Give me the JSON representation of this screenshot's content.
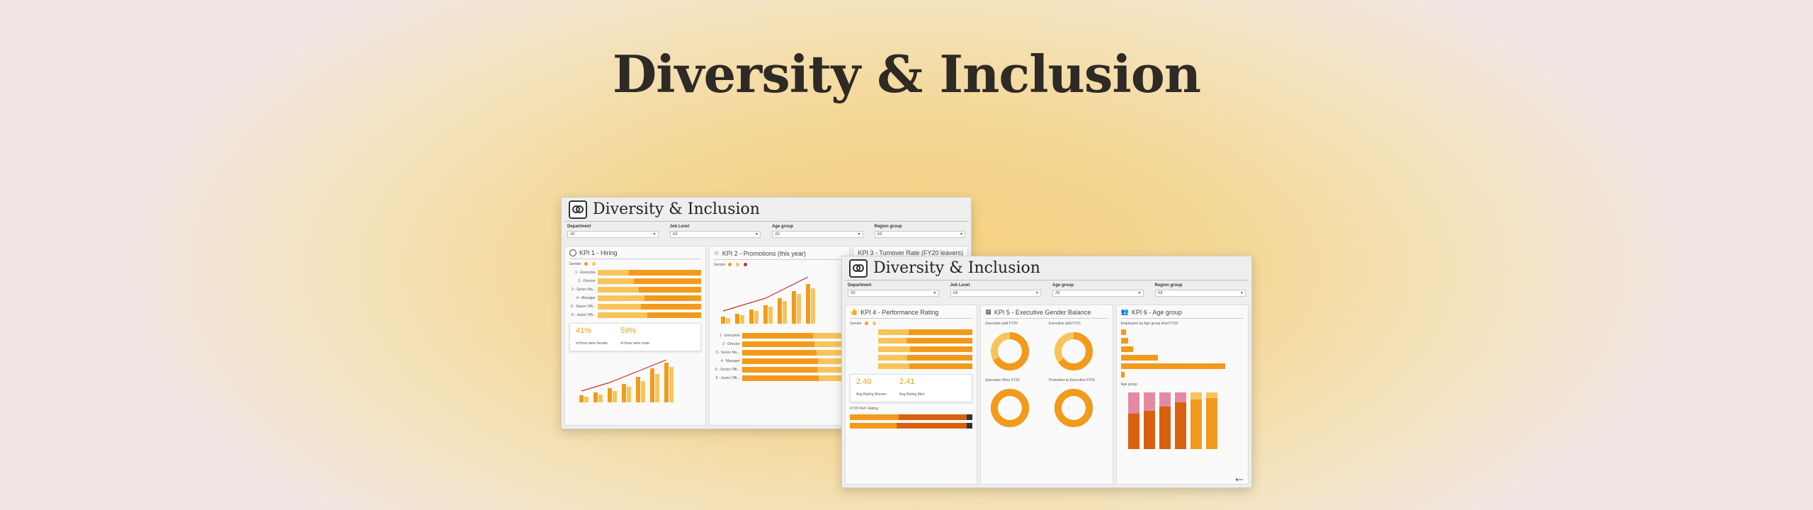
{
  "page": {
    "title": "Diversity & Inclusion"
  },
  "colors": {
    "accent": "#f29a1c",
    "dark": "#d9600e",
    "light": "#f8c45a",
    "pink": "#e48aa0",
    "red": "#c4302b"
  },
  "dashboard_left": {
    "title": "Diversity & Inclusion",
    "filters": [
      {
        "label": "Department",
        "value": "All"
      },
      {
        "label": "Job Level",
        "value": "All"
      },
      {
        "label": "Age group",
        "value": "All"
      },
      {
        "label": "Region group",
        "value": "All"
      }
    ],
    "kpi1": {
      "title": "KPI 1 - Hiring",
      "legend": "Gender",
      "rows": [
        {
          "label": "1 - Executive",
          "female": 0.3
        },
        {
          "label": "2 - Director",
          "female": 0.35
        },
        {
          "label": "3 - Senior Ma...",
          "female": 0.4
        },
        {
          "label": "4 - Manager",
          "female": 0.45
        },
        {
          "label": "5 - Senior Offi...",
          "female": 0.42
        },
        {
          "label": "6 - Junior Offi...",
          "female": 0.48
        }
      ],
      "stat1_value": "41%",
      "stat1_label": "of hires were female",
      "stat2_value": "59%",
      "stat2_label": "of hires were male"
    },
    "kpi2": {
      "title": "KPI 2 - Promotions (this year)",
      "legend": "Gender"
    },
    "kpi3": {
      "title": "KPI 3 - Turnover Rate (FY20 leavers)"
    }
  },
  "dashboard_right": {
    "title": "Diversity & Inclusion",
    "filters": [
      {
        "label": "Department",
        "value": "All"
      },
      {
        "label": "Job Level",
        "value": "All"
      },
      {
        "label": "Age group",
        "value": "All"
      },
      {
        "label": "Region group",
        "value": "All"
      }
    ],
    "kpi4": {
      "title": "KPI 4 - Performance Rating",
      "legend": "Gender",
      "rows": [
        0.32,
        0.3,
        0.34,
        0.31,
        0.33
      ],
      "stat1_value": "2.40",
      "stat1_label": "Avg Rating Women",
      "stat2_value": "2.41",
      "stat2_label": "Avg Rating Men",
      "sub_label": "FY20 Perf. Rating"
    },
    "kpi5": {
      "title": "KPI 5 - Executive Gender Balance",
      "donuts": [
        {
          "label": "Executive split FY20",
          "share": 0.67
        },
        {
          "label": "Executive split FY21",
          "share": 0.65
        },
        {
          "label": "Executive Hires FY20",
          "share": 1.0
        },
        {
          "label": "Promotion to Executive FY20",
          "share": 1.0
        }
      ]
    },
    "kpi6": {
      "title": "KPI 6 - Age group",
      "sub_label": "Employees by Age group level FY20",
      "age_label": "Age group",
      "rows": [
        0.04,
        0.06,
        0.1,
        0.3,
        0.85,
        0.03
      ]
    }
  },
  "back_icon": "←"
}
